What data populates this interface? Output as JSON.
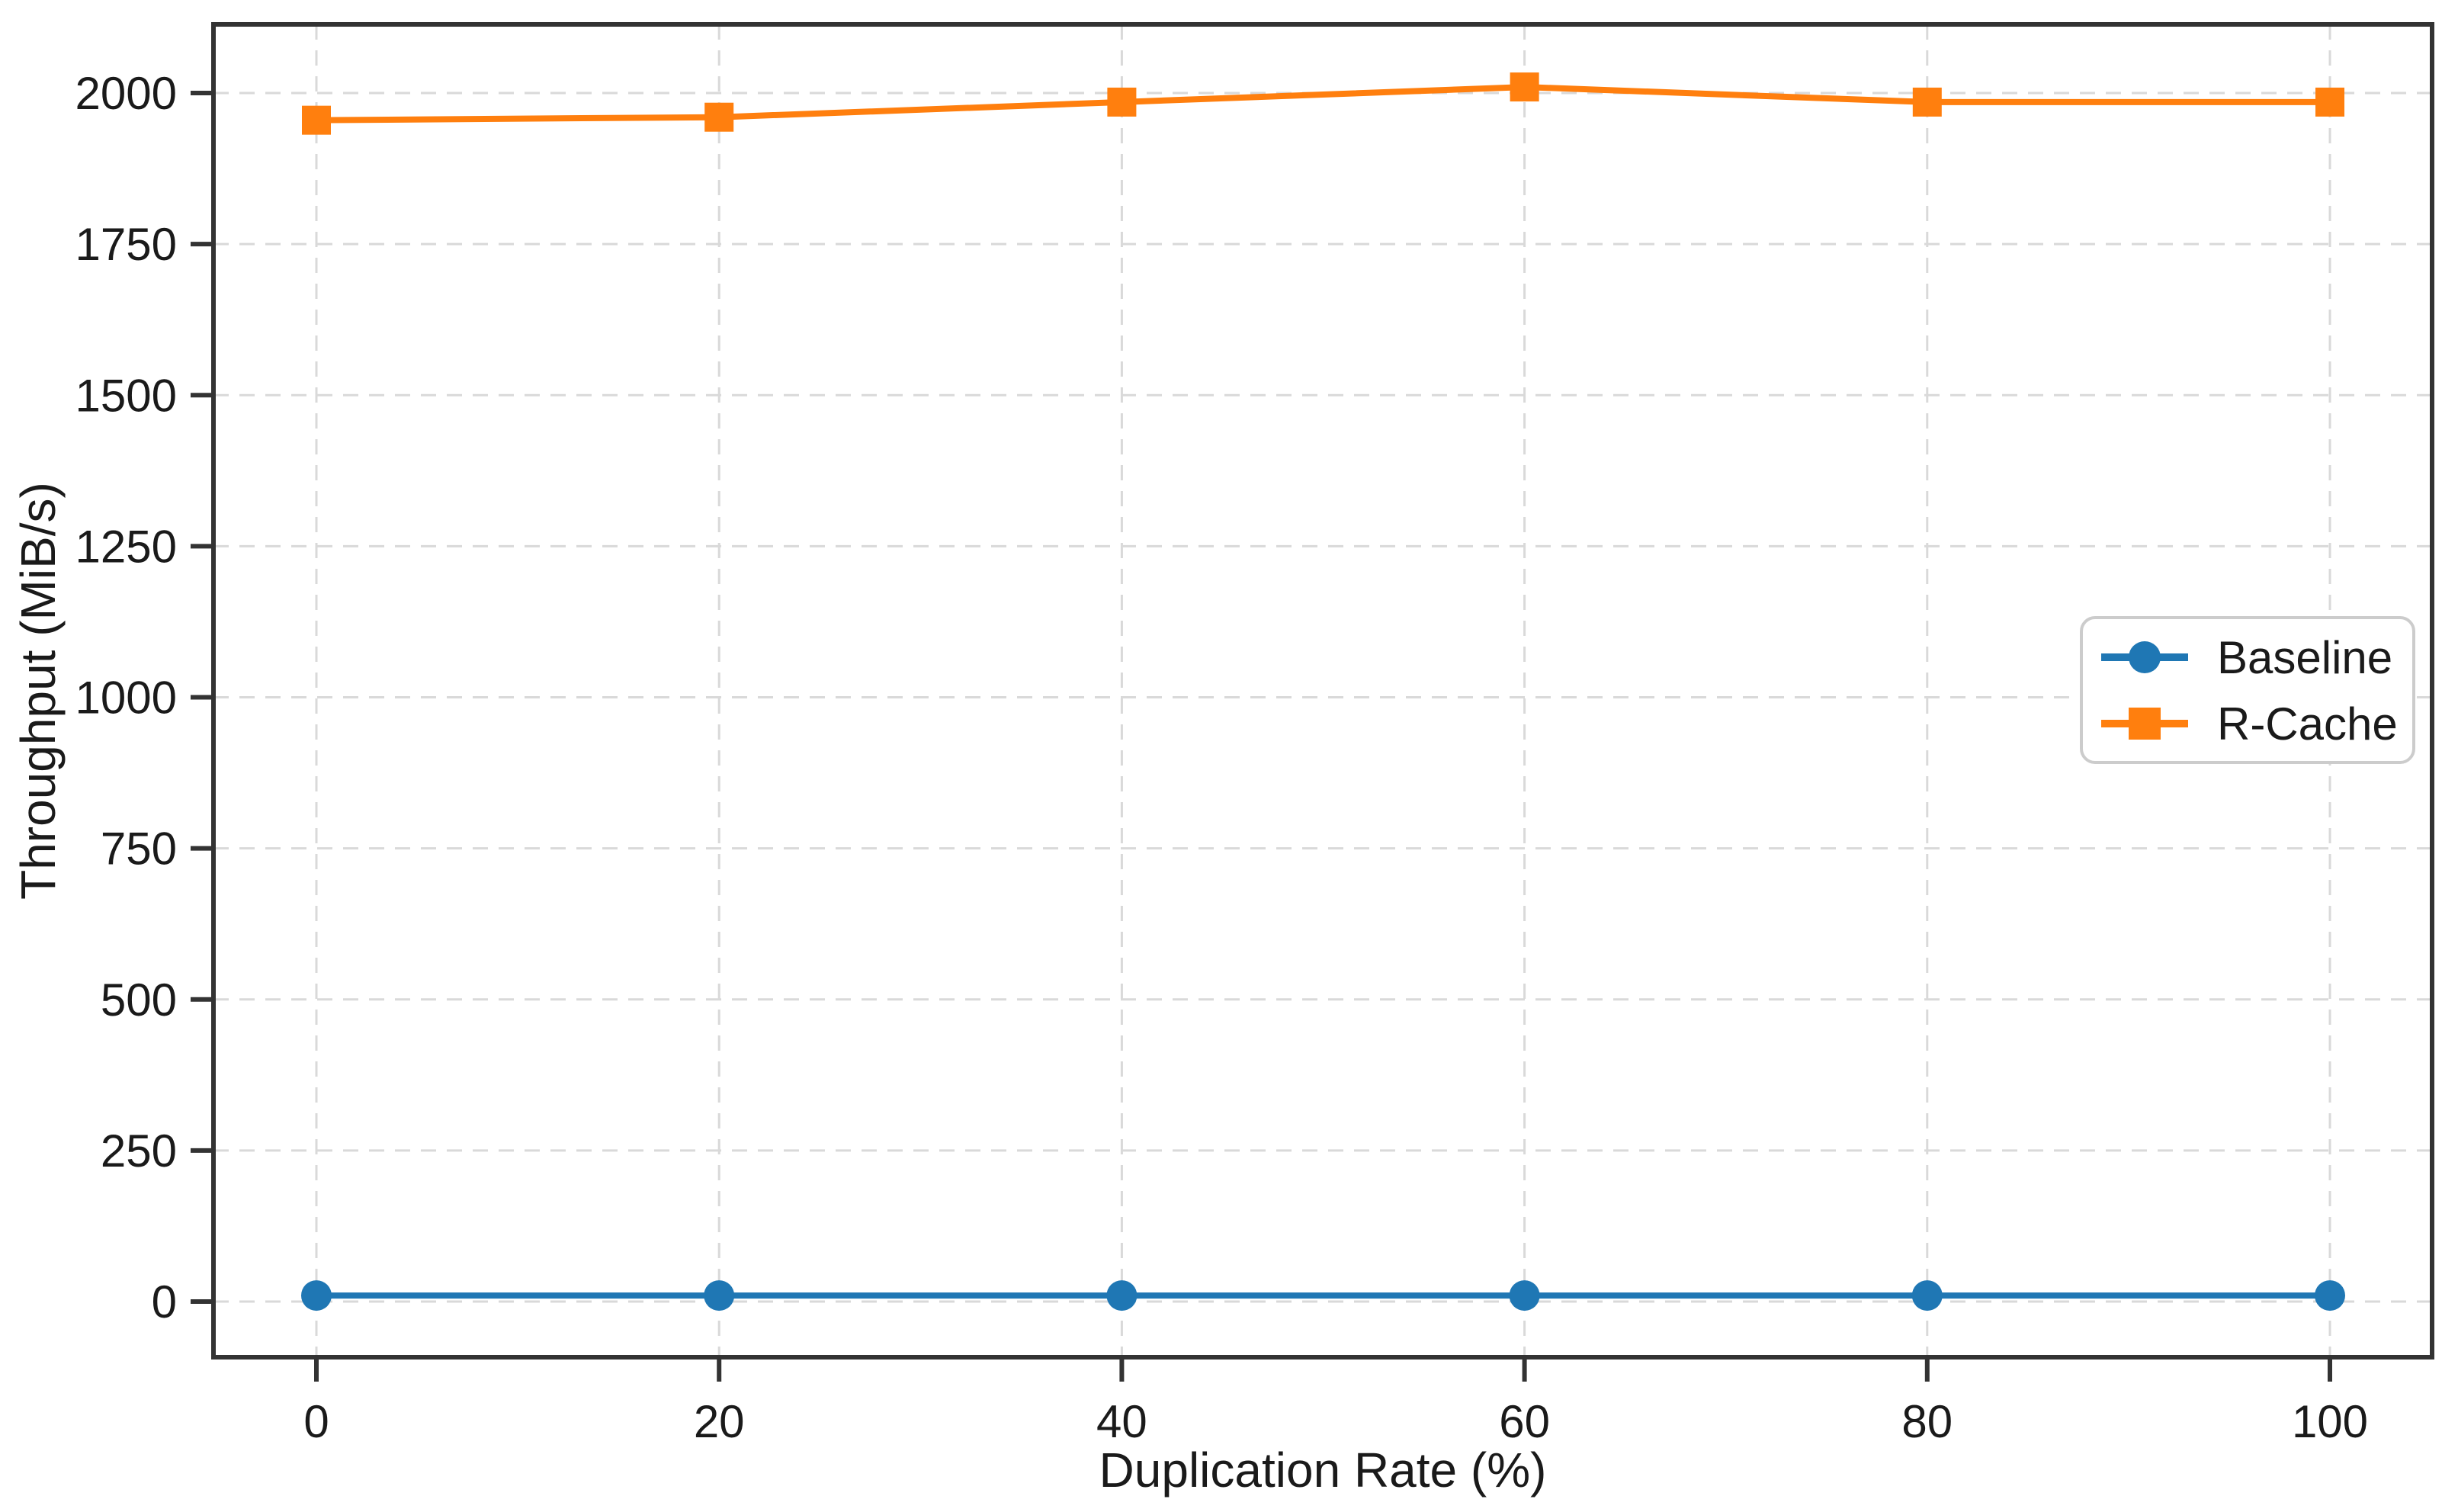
{
  "figure": {
    "background": "#ffffff"
  },
  "chart_data": {
    "type": "line",
    "title": "",
    "xlabel": "Duplication Rate (%)",
    "ylabel": "Throughput (MiB/s)",
    "x": [
      0,
      20,
      40,
      60,
      80,
      100
    ],
    "x_ticks": [
      "0",
      "20",
      "40",
      "60",
      "80",
      "100"
    ],
    "y_ticks": [
      "0",
      "250",
      "500",
      "750",
      "1000",
      "1250",
      "1500",
      "1750",
      "2000"
    ],
    "y_tick_values": [
      0,
      250,
      500,
      750,
      1000,
      1250,
      1500,
      1750,
      2000
    ],
    "xlim": [
      -5.1,
      105.1
    ],
    "ylim": [
      -95,
      2113
    ],
    "grid": "dashed-both-axes",
    "legend_position": "center-right",
    "series": [
      {
        "name": "Baseline",
        "color": "#1f77b4",
        "marker": "circle",
        "values": [
          10,
          10,
          10,
          10,
          10,
          10
        ]
      },
      {
        "name": "R-Cache",
        "color": "#ff7f0e",
        "marker": "square",
        "values": [
          1955,
          1960,
          1985,
          2010,
          1985,
          1985
        ]
      }
    ],
    "colors": {
      "spine": "#333333",
      "grid": "#d9d9d9",
      "tick": "#333333",
      "tick_label": "#1a1a1a",
      "legend_border": "#cccccc",
      "legend_background": "#ffffff"
    }
  }
}
